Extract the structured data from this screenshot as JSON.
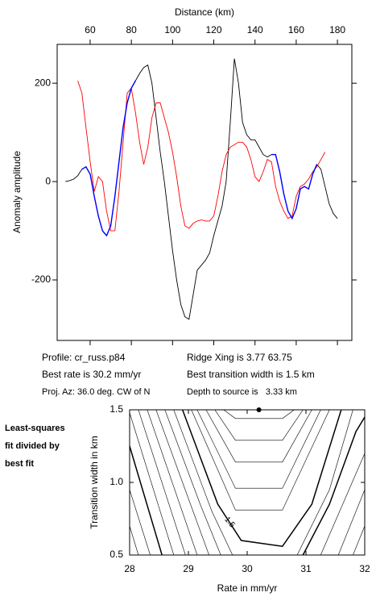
{
  "chart_data": [
    {
      "type": "line",
      "x_label": "Distance (km)",
      "y_label": "Anomaly amplitude",
      "xlim": [
        44,
        187
      ],
      "ylim": [
        -323,
        279
      ],
      "xticks": [
        60,
        80,
        100,
        120,
        140,
        160,
        180
      ],
      "yticks": [
        -200,
        0,
        200
      ],
      "x": [
        48,
        50,
        52,
        54,
        56,
        58,
        60,
        62,
        64,
        66,
        68,
        70,
        72,
        74,
        76,
        78,
        80,
        82,
        84,
        86,
        88,
        90,
        92,
        94,
        96,
        98,
        100,
        102,
        104,
        106,
        108,
        110,
        112,
        114,
        116,
        118,
        120,
        122,
        124,
        126,
        128,
        130,
        132,
        134,
        136,
        138,
        140,
        142,
        144,
        146,
        148,
        150,
        152,
        154,
        156,
        158,
        160,
        162,
        164,
        166,
        168,
        170,
        172,
        174,
        176,
        178,
        180
      ],
      "series": [
        {
          "color": "#000000",
          "values": [
            0,
            2,
            5,
            12,
            25,
            30,
            15,
            -30,
            -70,
            -100,
            -110,
            -90,
            -30,
            40,
            110,
            160,
            190,
            205,
            220,
            232,
            237,
            200,
            130,
            60,
            0,
            -70,
            -140,
            -200,
            -250,
            -275,
            -280,
            -230,
            -180,
            -170,
            -160,
            -145,
            -110,
            -80,
            -50,
            0,
            120,
            250,
            200,
            120,
            95,
            85,
            85,
            70,
            55,
            50,
            55,
            55,
            20,
            -25,
            -60,
            -75,
            -55,
            -15,
            -10,
            -15,
            15,
            35,
            25,
            -10,
            -45,
            -65,
            -75
          ]
        },
        {
          "color": "#ff0000",
          "values": [
            null,
            null,
            null,
            205,
            180,
            110,
            40,
            -20,
            10,
            0,
            -60,
            -100,
            -100,
            -20,
            80,
            180,
            190,
            140,
            80,
            35,
            70,
            130,
            160,
            160,
            130,
            100,
            60,
            10,
            -50,
            -90,
            -95,
            -85,
            -80,
            -78,
            -80,
            -80,
            -70,
            -30,
            20,
            55,
            70,
            75,
            80,
            80,
            70,
            45,
            10,
            0,
            20,
            45,
            40,
            -10,
            -40,
            -60,
            -75,
            -70,
            -30,
            -10,
            -5,
            5,
            20,
            30,
            45,
            60,
            null,
            null,
            null
          ]
        },
        {
          "color": "#0000ff",
          "values": [
            null,
            null,
            null,
            null,
            25,
            30,
            15,
            -30,
            -70,
            -100,
            -110,
            -90,
            -30,
            40,
            110,
            160,
            190,
            205,
            null,
            null,
            null,
            null,
            null,
            null,
            null,
            null,
            null,
            null,
            null,
            null,
            null,
            null,
            null,
            null,
            null,
            null,
            null,
            null,
            null,
            null,
            null,
            null,
            null,
            null,
            null,
            null,
            null,
            null,
            null,
            null,
            55,
            55,
            20,
            -25,
            -60,
            -75,
            -55,
            -15,
            -10,
            -15,
            15,
            35,
            null,
            null,
            null,
            null,
            null
          ]
        }
      ],
      "annotations": [
        "Profile: cr_russ.p84",
        "Ridge Xing is 3.77 63.75",
        "Best rate is 30.2 mm/yr",
        "Best transition width is 1.5 km",
        "Proj. Az: 36.0 deg. CW of N",
        "Depth to source is   3.33 km"
      ]
    },
    {
      "type": "contour",
      "x_label": "Rate in mm/yr",
      "y_label": "Transition width in km",
      "side_note": [
        "Least-squares",
        "fit divided by",
        "best fit"
      ],
      "xlim": [
        28,
        32
      ],
      "ylim": [
        0.5,
        1.5
      ],
      "xticks": [
        28,
        29,
        30,
        31,
        32
      ],
      "yticks": [
        0.5,
        {
          "value": 1,
          "label": "1.0"
        },
        1.5
      ],
      "best_fit": {
        "x": 30.2,
        "y": 1.5
      },
      "contours": [
        {
          "x": [
            29.6,
            29.8,
            30.6,
            30.8
          ],
          "y": [
            1.5,
            1.44,
            1.44,
            1.5
          ]
        },
        {
          "x": [
            29.45,
            29.8,
            30.6,
            30.95
          ],
          "y": [
            1.5,
            1.29,
            1.29,
            1.5
          ]
        },
        {
          "x": [
            29.3,
            29.8,
            30.6,
            31.1
          ],
          "y": [
            1.5,
            1.14,
            1.14,
            1.5
          ]
        },
        {
          "x": [
            29.15,
            29.8,
            30.6,
            31.25
          ],
          "y": [
            1.5,
            0.96,
            0.96,
            1.5
          ]
        },
        {
          "x": [
            29.05,
            29.8,
            30.6,
            31.4
          ],
          "y": [
            1.5,
            0.81,
            0.81,
            1.5
          ]
        },
        {
          "x": [
            28.9,
            29.5,
            29.9,
            30.6,
            31.1,
            31.6
          ],
          "y": [
            1.5,
            0.85,
            0.6,
            0.56,
            0.85,
            1.5
          ],
          "bold": true,
          "label": "1.5"
        },
        {
          "x": [
            28.75,
            29.4,
            29.75
          ],
          "y": [
            1.5,
            0.8,
            0.5
          ]
        },
        {
          "x": [
            30.85,
            31.4,
            31.8
          ],
          "y": [
            0.5,
            0.95,
            1.5
          ]
        },
        {
          "x": [
            28.6,
            29.2,
            29.55
          ],
          "y": [
            1.5,
            0.85,
            0.5
          ]
        },
        {
          "x": [
            28.45,
            29.35
          ],
          "y": [
            1.5,
            0.5
          ]
        },
        {
          "x": [
            28.3,
            29.15
          ],
          "y": [
            1.5,
            0.5
          ]
        },
        {
          "x": [
            28.15,
            28.95
          ],
          "y": [
            1.5,
            0.5
          ]
        },
        {
          "x": [
            28.0,
            28.75
          ],
          "y": [
            1.48,
            0.5
          ]
        },
        {
          "x": [
            28.0,
            28.55
          ],
          "y": [
            1.25,
            0.5
          ],
          "bold": true
        },
        {
          "x": [
            28.0,
            28.35
          ],
          "y": [
            0.95,
            0.5
          ]
        },
        {
          "x": [
            28.0,
            28.15
          ],
          "y": [
            0.7,
            0.5
          ]
        },
        {
          "x": [
            30.95,
            31.4,
            31.85,
            32.0
          ],
          "y": [
            0.5,
            0.85,
            1.35,
            1.45
          ],
          "bold": true
        },
        {
          "x": [
            31.25,
            32.0
          ],
          "y": [
            0.5,
            1.2
          ]
        },
        {
          "x": [
            31.55,
            32.0
          ],
          "y": [
            0.5,
            0.95
          ]
        },
        {
          "x": [
            31.8,
            32.0
          ],
          "y": [
            0.5,
            0.7
          ]
        }
      ]
    }
  ]
}
